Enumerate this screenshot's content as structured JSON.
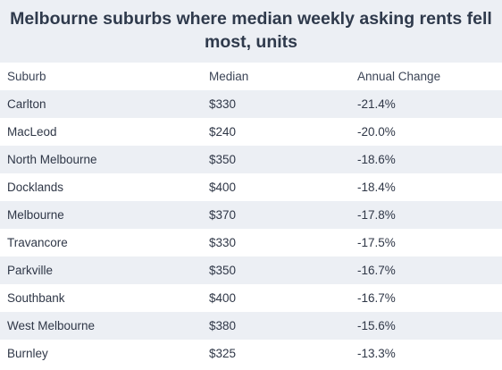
{
  "title": "Melbourne suburbs where median weekly asking rents fell most, units",
  "columns": [
    "Suburb",
    "Median",
    "Annual Change"
  ],
  "chart_data": {
    "type": "table",
    "title": "Melbourne suburbs where median weekly asking rents fell most, units",
    "columns": [
      "Suburb",
      "Median",
      "Annual Change"
    ],
    "rows": [
      [
        "Carlton",
        "$330",
        "-21.4%"
      ],
      [
        "MacLeod",
        "$240",
        "-20.0%"
      ],
      [
        "North Melbourne",
        "$350",
        "-18.6%"
      ],
      [
        "Docklands",
        "$400",
        "-18.4%"
      ],
      [
        "Melbourne",
        "$370",
        "-17.8%"
      ],
      [
        "Travancore",
        "$330",
        "-17.5%"
      ],
      [
        "Parkville",
        "$350",
        "-16.7%"
      ],
      [
        "Southbank",
        "$400",
        "-16.7%"
      ],
      [
        "West Melbourne",
        "$380",
        "-15.6%"
      ],
      [
        "Burnley",
        "$325",
        "-13.3%"
      ]
    ]
  }
}
